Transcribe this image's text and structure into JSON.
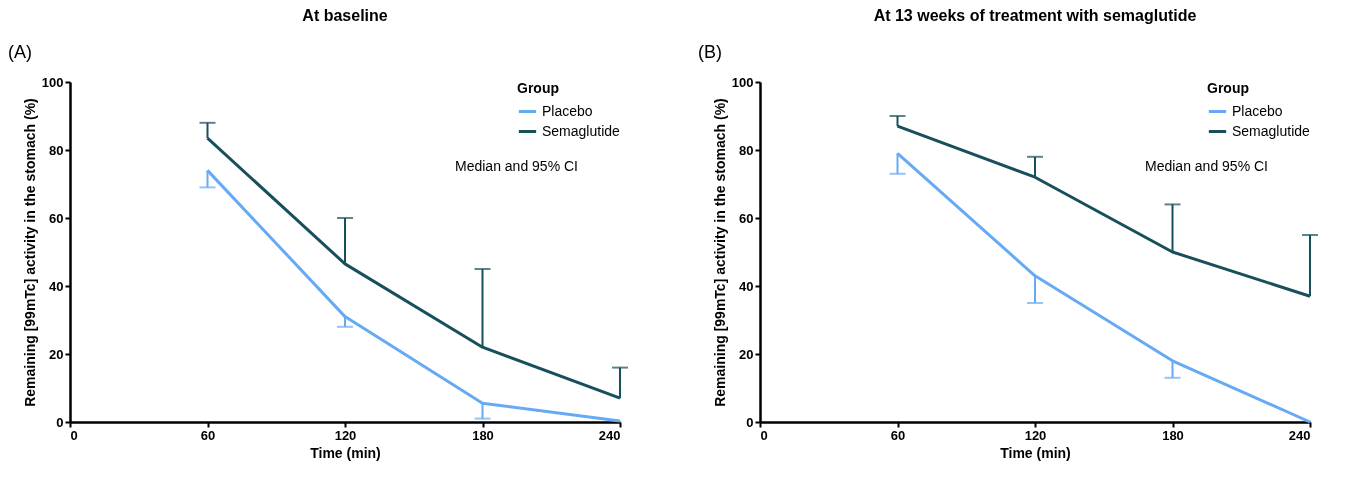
{
  "chart_data": [
    {
      "type": "line",
      "title": "At baseline",
      "xlabel": "Time (min)",
      "ylabel": "Remaining [99mTc] activity in the stomach (%)",
      "legend_title": "Group",
      "legend": "top right",
      "annotations": [
        "(A)",
        "Median and 95% CI"
      ],
      "x": [
        60,
        120,
        180,
        240
      ],
      "xlim": [
        0,
        240
      ],
      "xticks": [
        0,
        60,
        120,
        180,
        240
      ],
      "ylim": [
        0,
        100
      ],
      "yticks": [
        0,
        20,
        40,
        60,
        80,
        100
      ],
      "grid": false,
      "series": [
        {
          "name": "Placebo",
          "color": "#66aaf5",
          "values": [
            74,
            31,
            5.5,
            0.3
          ],
          "errors": [
            [
              69,
              74
            ],
            [
              28,
              31
            ],
            [
              1,
              5.5
            ],
            null
          ]
        },
        {
          "name": "Semaglutide",
          "color": "#17505c",
          "values": [
            83.5,
            46.5,
            22,
            7
          ],
          "errors": [
            [
              83.5,
              88
            ],
            [
              46.5,
              60
            ],
            [
              22,
              45
            ],
            [
              7,
              16
            ]
          ]
        }
      ]
    },
    {
      "type": "line",
      "title": "At 13 weeks of treatment with semaglutide",
      "xlabel": "Time (min)",
      "ylabel": "Remaining [99mTc] activity in the stomach (%)",
      "legend_title": "Group",
      "legend": "top right",
      "annotations": [
        "(B)",
        "Median and 95% CI"
      ],
      "x": [
        60,
        120,
        180,
        240
      ],
      "xlim": [
        0,
        240
      ],
      "xticks": [
        0,
        60,
        120,
        180,
        240
      ],
      "ylim": [
        0,
        100
      ],
      "yticks": [
        0,
        20,
        40,
        60,
        80,
        100
      ],
      "grid": false,
      "series": [
        {
          "name": "Placebo",
          "color": "#66aaf5",
          "values": [
            79,
            43,
            18,
            0
          ],
          "errors": [
            [
              73,
              79
            ],
            [
              35,
              43
            ],
            [
              13,
              18
            ],
            null
          ]
        },
        {
          "name": "Semaglutide",
          "color": "#17505c",
          "values": [
            87,
            72,
            50,
            37
          ],
          "errors": [
            [
              87,
              90
            ],
            [
              72,
              78
            ],
            [
              50,
              64
            ],
            [
              37,
              55
            ]
          ]
        }
      ]
    }
  ]
}
